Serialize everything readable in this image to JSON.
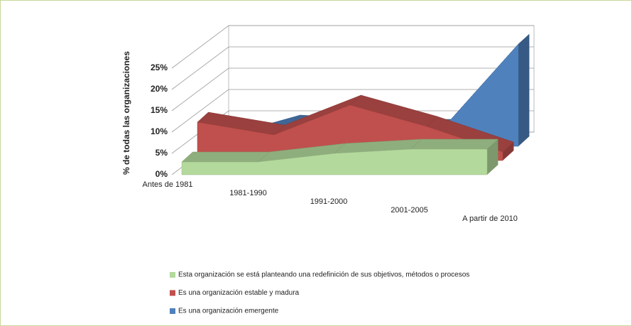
{
  "chart_data": {
    "type": "area3d",
    "y_axis_label": "% de todas las organizaciones",
    "categories": [
      "Antes de 1981",
      "1981-1990",
      "1991-2000",
      "2001-2005",
      "A partir de 2010"
    ],
    "series": [
      {
        "name": "Esta organización se está planteando una redefinición de sus objetivos, métodos o procesos",
        "color": "#b3d99c",
        "values": [
          3,
          3,
          5,
          6,
          6
        ]
      },
      {
        "name": "Es una organización estable y madura",
        "color": "#c0504d",
        "values": [
          9,
          6,
          13,
          8,
          2
        ]
      },
      {
        "name": "Es una organización emergente",
        "color": "#4f81bd",
        "values": [
          0,
          5,
          4,
          4,
          24
        ]
      }
    ],
    "ylim": [
      0,
      25
    ],
    "yticks": [
      {
        "value": 0,
        "label": "0%"
      },
      {
        "value": 5,
        "label": "5%"
      },
      {
        "value": 10,
        "label": "10%"
      },
      {
        "value": 15,
        "label": "15%"
      },
      {
        "value": 20,
        "label": "20%"
      },
      {
        "value": 25,
        "label": "25%"
      }
    ],
    "grid": true
  }
}
